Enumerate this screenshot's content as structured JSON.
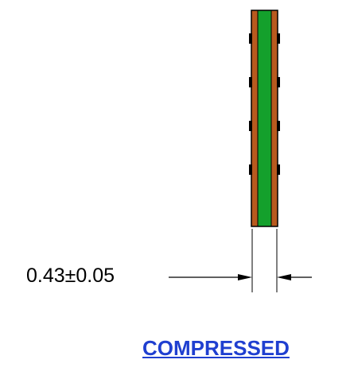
{
  "dimension": {
    "label": "0.43±0.05"
  },
  "caption": {
    "text": "COMPRESSED"
  },
  "colors": {
    "core": "#14a02c",
    "copper": "#b85a1e",
    "outline": "#000000",
    "caption": "#1f3fd0"
  }
}
